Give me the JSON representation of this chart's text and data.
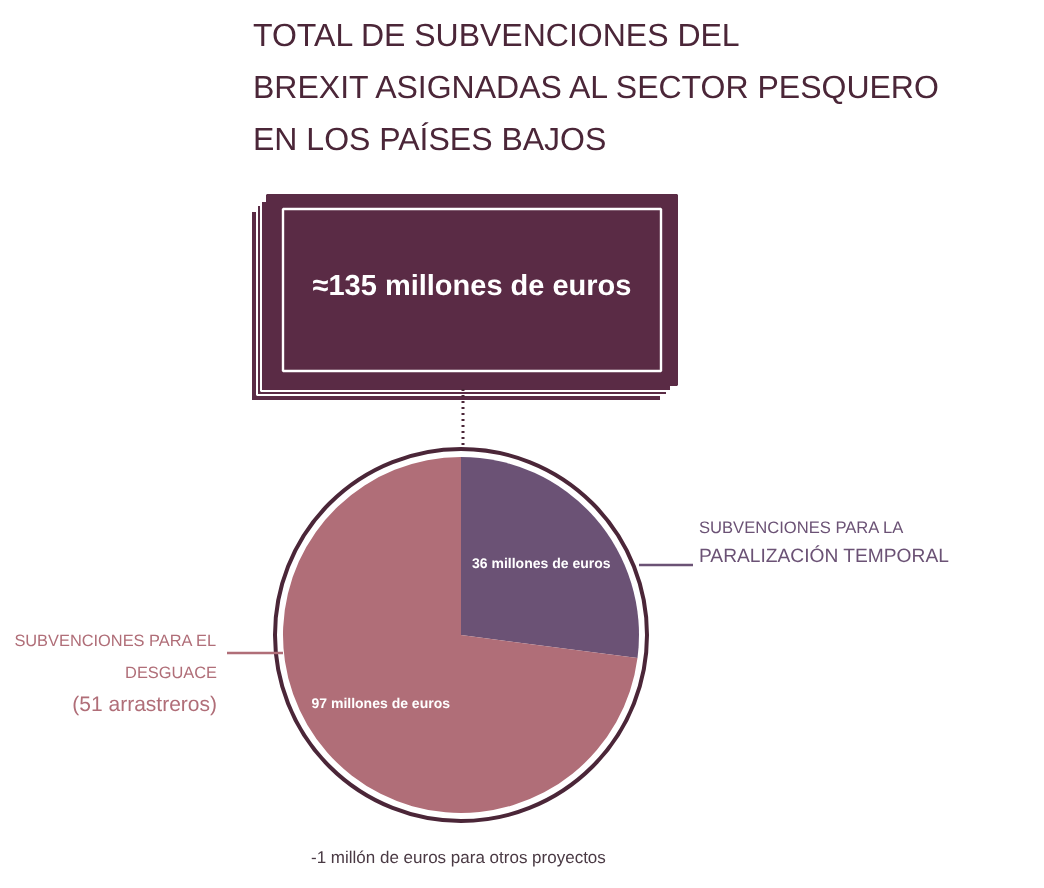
{
  "chart_data": {
    "type": "pie",
    "title": "TOTAL DE SUBVENCIONES DEL\nBREXIT ASIGNADAS AL SECTOR PESQUERO\nEN LOS PAÍSES BAJOS",
    "categories": [
      "SUBVENCIONES PARA LA\nPARALIZACIÓN TEMPORAL",
      "SUBVENCIONES PARA EL\nDESGUACE\n(51 arrastreros)"
    ],
    "values": [
      36,
      97
    ],
    "colors": [
      "#6b5275",
      "#b06e78"
    ],
    "value_labels": [
      "36 millones de euros",
      "97 millones de euros"
    ],
    "annotations": [
      "≈135 millones de euros",
      "-1 millón de euros para otros proyectos"
    ]
  }
}
